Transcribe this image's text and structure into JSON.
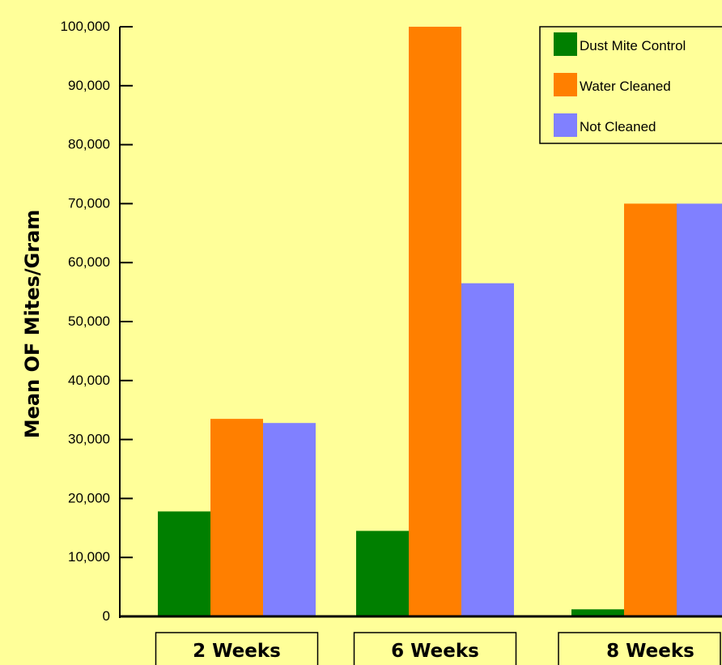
{
  "chart_data": {
    "type": "bar",
    "title": "",
    "xlabel": "",
    "ylabel": "Mean OF Mites/Gram",
    "categories": [
      "2 Weeks",
      "6 Weeks",
      "8 Weeks"
    ],
    "series": [
      {
        "name": "Dust Mite Control",
        "color": "#007F00",
        "values": [
          17800,
          14500,
          1200
        ]
      },
      {
        "name": "Water Cleaned",
        "color": "#FF7F00",
        "values": [
          33500,
          100000,
          70000
        ]
      },
      {
        "name": "Not Cleaned",
        "color": "#8080FF",
        "values": [
          32800,
          56500,
          70000
        ]
      }
    ],
    "ylim": [
      0,
      100000
    ],
    "yticks": [
      "0",
      "10,000",
      "20,000",
      "30,000",
      "40,000",
      "50,000",
      "60,000",
      "70,000",
      "80,000",
      "90,000",
      "100,000"
    ],
    "grid": false,
    "legend_position": "top-right"
  },
  "colors": {
    "background": "#FFFF99",
    "axis": "#000000"
  }
}
